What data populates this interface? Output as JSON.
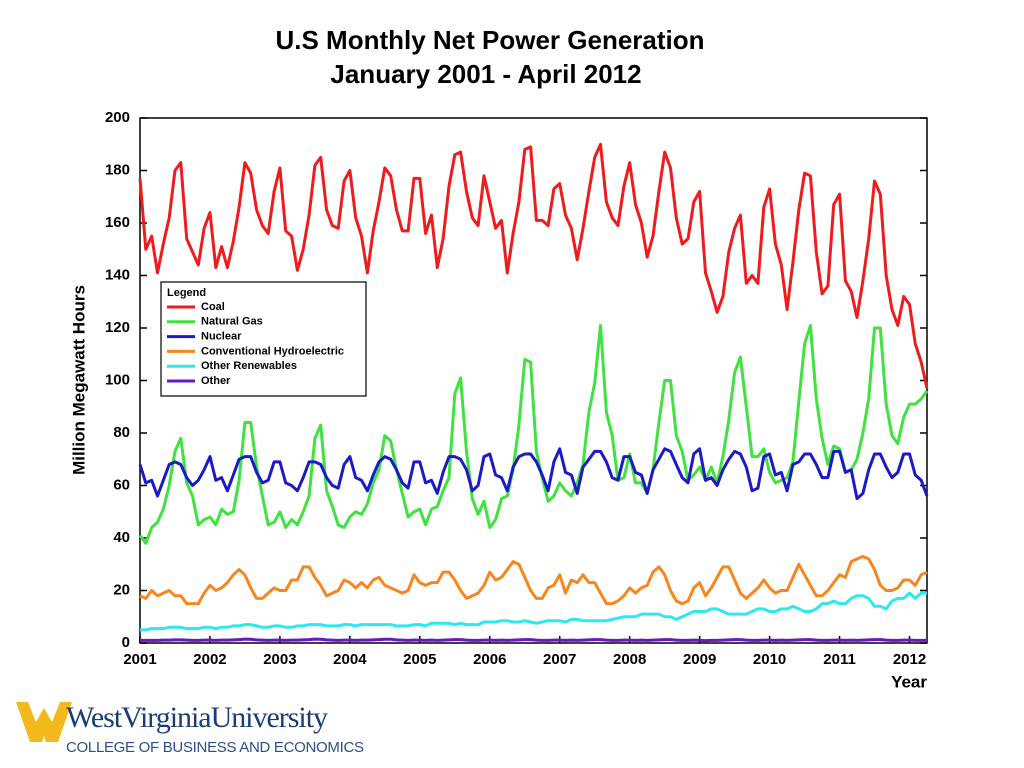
{
  "chart_data": {
    "type": "line",
    "title": "U.S Monthly Net Power Generation",
    "subtitle": "January 2001 - April 2012",
    "y_label": "Million Megawatt Hours",
    "x_label": "Year",
    "legend_title": "Legend",
    "legend_position": "upper-left",
    "xlim": [
      2001,
      2012.25
    ],
    "xticks": [
      2001,
      2002,
      2003,
      2004,
      2005,
      2006,
      2007,
      2008,
      2009,
      2010,
      2011,
      2012
    ],
    "ylim": [
      0,
      200
    ],
    "yticks": [
      0,
      20,
      40,
      60,
      80,
      100,
      120,
      140,
      160,
      180,
      200
    ],
    "x": [
      2001,
      2001.083,
      2001.167,
      2001.25,
      2001.333,
      2001.417,
      2001.5,
      2001.583,
      2001.667,
      2001.75,
      2001.833,
      2001.917,
      2002,
      2002.083,
      2002.167,
      2002.25,
      2002.333,
      2002.417,
      2002.5,
      2002.583,
      2002.667,
      2002.75,
      2002.833,
      2002.917,
      2003,
      2003.083,
      2003.167,
      2003.25,
      2003.333,
      2003.417,
      2003.5,
      2003.583,
      2003.667,
      2003.75,
      2003.833,
      2003.917,
      2004,
      2004.083,
      2004.167,
      2004.25,
      2004.333,
      2004.417,
      2004.5,
      2004.583,
      2004.667,
      2004.75,
      2004.833,
      2004.917,
      2005,
      2005.083,
      2005.167,
      2005.25,
      2005.333,
      2005.417,
      2005.5,
      2005.583,
      2005.667,
      2005.75,
      2005.833,
      2005.917,
      2006,
      2006.083,
      2006.167,
      2006.25,
      2006.333,
      2006.417,
      2006.5,
      2006.583,
      2006.667,
      2006.75,
      2006.833,
      2006.917,
      2007,
      2007.083,
      2007.167,
      2007.25,
      2007.333,
      2007.417,
      2007.5,
      2007.583,
      2007.667,
      2007.75,
      2007.833,
      2007.917,
      2008,
      2008.083,
      2008.167,
      2008.25,
      2008.333,
      2008.417,
      2008.5,
      2008.583,
      2008.667,
      2008.75,
      2008.833,
      2008.917,
      2009,
      2009.083,
      2009.167,
      2009.25,
      2009.333,
      2009.417,
      2009.5,
      2009.583,
      2009.667,
      2009.75,
      2009.833,
      2009.917,
      2010,
      2010.083,
      2010.167,
      2010.25,
      2010.333,
      2010.417,
      2010.5,
      2010.583,
      2010.667,
      2010.75,
      2010.833,
      2010.917,
      2011,
      2011.083,
      2011.167,
      2011.25,
      2011.333,
      2011.417,
      2011.5,
      2011.583,
      2011.667,
      2011.75,
      2011.833,
      2011.917,
      2012,
      2012.083,
      2012.167,
      2012.25
    ],
    "series": [
      {
        "name": "Coal",
        "color": "#ee1c1c",
        "values": [
          177,
          150,
          155,
          141,
          152,
          162,
          180,
          183,
          154,
          149,
          144,
          158,
          164,
          143,
          151,
          143,
          153,
          166,
          183,
          179,
          165,
          159,
          156,
          172,
          181,
          157,
          155,
          142,
          150,
          163,
          182,
          185,
          165,
          159,
          158,
          176,
          180,
          162,
          155,
          141,
          157,
          168,
          181,
          178,
          165,
          157,
          157,
          177,
          177,
          156,
          163,
          143,
          154,
          174,
          186,
          187,
          172,
          162,
          159,
          178,
          168,
          158,
          161,
          141,
          156,
          168,
          188,
          189,
          161,
          161,
          159,
          173,
          175,
          163,
          158,
          146,
          158,
          172,
          185,
          190,
          168,
          162,
          159,
          174,
          183,
          167,
          160,
          147,
          155,
          172,
          187,
          181,
          162,
          152,
          154,
          168,
          172,
          141,
          134,
          126,
          132,
          149,
          158,
          163,
          137,
          140,
          137,
          166,
          173,
          152,
          144,
          127,
          145,
          165,
          179,
          178,
          149,
          133,
          136,
          167,
          171,
          138,
          134,
          124,
          138,
          154,
          176,
          171,
          140,
          127,
          121,
          132,
          129,
          114,
          107,
          97
        ]
      },
      {
        "name": "Natural Gas",
        "color": "#3fe23f",
        "values": [
          41,
          38,
          44,
          46,
          51,
          60,
          73,
          78,
          61,
          56,
          45,
          47,
          48,
          45,
          51,
          49,
          50,
          62,
          84,
          84,
          67,
          56,
          45,
          46,
          50,
          44,
          47,
          45,
          50,
          56,
          78,
          83,
          58,
          52,
          45,
          44,
          48,
          50,
          49,
          53,
          61,
          66,
          79,
          77,
          66,
          57,
          48,
          50,
          51,
          45,
          51,
          52,
          58,
          63,
          95,
          101,
          73,
          55,
          49,
          54,
          44,
          47,
          55,
          56,
          66,
          83,
          108,
          107,
          73,
          63,
          54,
          56,
          61,
          58,
          56,
          61,
          68,
          88,
          99,
          121,
          88,
          79,
          62,
          63,
          72,
          61,
          61,
          57,
          66,
          84,
          100,
          100,
          79,
          73,
          62,
          64,
          67,
          62,
          67,
          61,
          71,
          85,
          103,
          109,
          90,
          71,
          71,
          74,
          65,
          61,
          62,
          63,
          69,
          92,
          114,
          121,
          93,
          78,
          68,
          75,
          74,
          65,
          66,
          70,
          80,
          93,
          120,
          120,
          91,
          79,
          76,
          86,
          91,
          91,
          93,
          96
        ]
      },
      {
        "name": "Nuclear",
        "color": "#1a1ac8",
        "values": [
          68,
          61,
          62,
          56,
          62,
          68,
          69,
          68,
          63,
          60,
          62,
          66,
          71,
          62,
          63,
          58,
          64,
          70,
          71,
          71,
          65,
          61,
          62,
          69,
          69,
          61,
          60,
          58,
          63,
          69,
          69,
          68,
          63,
          60,
          59,
          68,
          71,
          63,
          62,
          58,
          64,
          69,
          71,
          70,
          66,
          61,
          59,
          69,
          69,
          61,
          62,
          57,
          65,
          71,
          71,
          70,
          66,
          58,
          60,
          71,
          72,
          64,
          63,
          58,
          67,
          71,
          72,
          72,
          69,
          64,
          58,
          69,
          74,
          65,
          64,
          57,
          67,
          70,
          73,
          73,
          69,
          63,
          62,
          71,
          71,
          65,
          64,
          57,
          66,
          70,
          74,
          73,
          68,
          63,
          61,
          72,
          74,
          62,
          63,
          60,
          66,
          70,
          73,
          72,
          67,
          58,
          59,
          71,
          72,
          64,
          65,
          58,
          68,
          69,
          72,
          72,
          68,
          63,
          63,
          73,
          73,
          65,
          66,
          55,
          57,
          66,
          72,
          72,
          67,
          63,
          65,
          72,
          72,
          64,
          62,
          56
        ]
      },
      {
        "name": "Conventional Hydroelectric",
        "color": "#f7861e",
        "values": [
          18,
          17,
          20,
          18,
          19,
          20,
          18,
          18,
          15,
          15,
          15,
          19,
          22,
          20,
          21,
          23,
          26,
          28,
          26,
          21,
          17,
          17,
          19,
          21,
          20,
          20,
          24,
          24,
          29,
          29,
          25,
          22,
          18,
          19,
          20,
          24,
          23,
          21,
          23,
          21,
          24,
          25,
          22,
          21,
          20,
          19,
          20,
          26,
          23,
          22,
          23,
          23,
          27,
          27,
          24,
          20,
          17,
          18,
          19,
          22,
          27,
          24,
          25,
          28,
          31,
          30,
          25,
          20,
          17,
          17,
          21,
          22,
          26,
          19,
          24,
          23,
          26,
          23,
          23,
          19,
          15,
          15,
          16,
          18,
          21,
          19,
          21,
          22,
          27,
          29,
          26,
          20,
          16,
          15,
          16,
          21,
          23,
          18,
          21,
          25,
          29,
          29,
          24,
          19,
          17,
          19,
          21,
          24,
          21,
          19,
          20,
          20,
          25,
          30,
          26,
          22,
          18,
          18,
          20,
          23,
          26,
          25,
          31,
          32,
          33,
          32,
          28,
          22,
          20,
          20,
          21,
          24,
          24,
          22,
          26,
          27
        ]
      },
      {
        "name": "Other Renewables",
        "color": "#2ee8ee",
        "values": [
          5,
          5,
          5.5,
          5.5,
          5.5,
          6,
          6,
          6,
          5.5,
          5.5,
          5.5,
          6,
          6,
          5.5,
          6,
          6,
          6.5,
          6.5,
          7,
          7,
          6.5,
          6,
          6,
          6.5,
          6.5,
          6,
          6,
          6.5,
          6.5,
          7,
          7,
          7,
          6.5,
          6.5,
          6.5,
          7,
          7,
          6.5,
          7,
          7,
          7,
          7,
          7,
          7,
          6.5,
          6.5,
          6.5,
          7,
          7,
          6.5,
          7.5,
          7.5,
          7.5,
          7.5,
          7,
          7.5,
          7,
          7,
          7,
          8,
          8,
          8,
          8.5,
          8.5,
          8,
          8,
          8.5,
          8,
          7.5,
          8,
          8.5,
          8.5,
          8.5,
          8,
          9,
          9,
          8.5,
          8.5,
          8.5,
          8.5,
          8.5,
          9,
          9.5,
          10,
          10,
          10,
          11,
          11,
          11,
          11,
          10,
          10,
          9,
          10,
          11,
          12,
          12,
          12,
          13,
          13,
          12,
          11,
          11,
          11,
          11,
          12,
          13,
          13,
          12,
          12,
          13,
          13,
          14,
          13,
          12,
          12,
          13,
          15,
          15,
          16,
          15,
          15,
          17,
          18,
          18,
          17,
          14,
          14,
          13,
          16,
          17,
          17,
          19,
          17,
          19,
          19
        ]
      },
      {
        "name": "Other",
        "color": "#6a18c0",
        "values": [
          1,
          1,
          1,
          1,
          1.1,
          1.1,
          1.2,
          1.2,
          1.1,
          1,
          1,
          1.1,
          1.1,
          1,
          1.1,
          1.1,
          1.2,
          1.3,
          1.5,
          1.4,
          1.2,
          1.1,
          1,
          1.1,
          1.1,
          1,
          1.1,
          1.1,
          1.2,
          1.3,
          1.5,
          1.4,
          1.2,
          1.1,
          1,
          1.1,
          1.1,
          1,
          1.1,
          1.1,
          1.2,
          1.3,
          1.4,
          1.4,
          1.2,
          1.1,
          1,
          1.1,
          1.1,
          1,
          1.1,
          1,
          1.1,
          1.2,
          1.3,
          1.3,
          1.1,
          1,
          1,
          1.1,
          1.1,
          1,
          1.1,
          1,
          1.1,
          1.2,
          1.3,
          1.3,
          1.1,
          1,
          1,
          1.1,
          1.1,
          1,
          1.1,
          1,
          1.1,
          1.2,
          1.3,
          1.3,
          1.1,
          1,
          1,
          1.1,
          1.1,
          1,
          1.1,
          1,
          1.1,
          1.2,
          1.3,
          1.3,
          1.1,
          1,
          1,
          1.1,
          1,
          0.9,
          1,
          1,
          1.1,
          1.2,
          1.3,
          1.3,
          1.1,
          1,
          1,
          1.1,
          1.1,
          1,
          1.1,
          1,
          1.1,
          1.2,
          1.3,
          1.3,
          1.1,
          1,
          1,
          1.1,
          1.1,
          1,
          1.1,
          1,
          1.1,
          1.2,
          1.3,
          1.3,
          1.1,
          1,
          1,
          1.1,
          1.1,
          1,
          1,
          1
        ]
      }
    ]
  },
  "logo": {
    "university": "WestVirginiaUniversity",
    "college": "COLLEGE OF BUSINESS AND ECONOMICS"
  }
}
